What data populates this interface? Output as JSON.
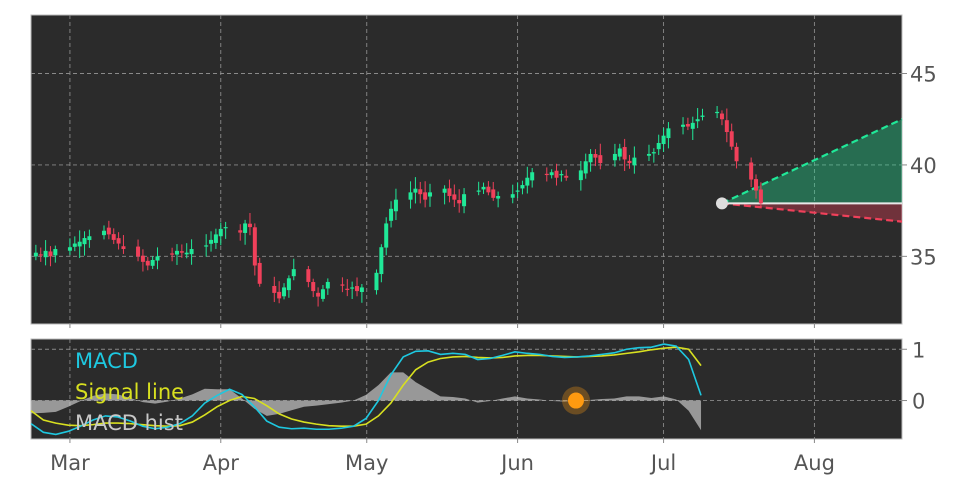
{
  "chart_data": [
    {
      "type": "candlestick",
      "x_axis": {
        "type": "date",
        "range": [
          "2021-02-21",
          "2021-08-19"
        ],
        "ticks": [
          {
            "date": "2021-03-01",
            "label": "Mar"
          },
          {
            "date": "2021-04-01",
            "label": "Apr"
          },
          {
            "date": "2021-05-01",
            "label": "May"
          },
          {
            "date": "2021-06-01",
            "label": "Jun"
          },
          {
            "date": "2021-07-01",
            "label": "Jul"
          },
          {
            "date": "2021-08-01",
            "label": "Aug"
          }
        ]
      },
      "y_axis": {
        "range": [
          31.3,
          48.2
        ],
        "position": "right",
        "ticks": [
          35,
          40,
          45
        ]
      },
      "grid": true,
      "colors": {
        "up": "#20e898",
        "down": "#f0405a",
        "background": "#2b2b2b"
      },
      "closes": [
        35.2,
        35.1,
        35.3,
        35.0,
        35.4,
        35.5,
        35.7,
        35.8,
        36.0,
        36.1,
        36.4,
        36.2,
        35.9,
        35.7,
        35.4,
        35.0,
        34.7,
        34.5,
        34.8,
        35.0,
        35.1,
        35.3,
        35.2,
        35.2,
        35.4,
        35.6,
        35.9,
        36.2,
        36.5,
        36.6,
        36.3,
        36.8,
        36.6,
        34.5,
        33.5,
        33.0,
        32.7,
        33.3,
        33.8,
        34.3,
        33.6,
        33.1,
        32.8,
        33.2,
        33.6,
        33.4,
        33.2,
        33.3,
        33.1,
        33.3,
        34.1,
        35.5,
        36.8,
        37.6,
        38.1,
        38.5,
        38.7,
        38.4,
        38.1,
        38.5,
        38.7,
        38.3,
        38.1,
        37.9,
        38.4,
        38.6,
        38.8,
        38.5,
        38.2,
        38.3,
        38.4,
        38.6,
        38.9,
        39.3,
        39.6,
        39.5,
        39.6,
        39.3,
        39.5,
        39.3,
        39.7,
        40.2,
        40.6,
        40.4,
        40.1,
        40.6,
        40.9,
        40.3,
        40.1,
        40.4,
        40.6,
        40.7,
        41.2,
        41.6,
        42.0,
        42.2,
        42.1,
        42.3,
        42.5,
        42.7,
        42.9,
        42.5,
        41.8,
        41.0,
        40.2,
        39.2,
        38.6,
        37.9
      ],
      "projection": {
        "start": {
          "date": "2021-07-13",
          "value": 37.9
        },
        "upper": {
          "date": "2021-08-19",
          "value": 42.5,
          "color": "#20e898"
        },
        "lower": {
          "date": "2021-08-19",
          "value": 36.9,
          "color": "#f0405a"
        },
        "baseline": 37.9,
        "marker_color": "#dddddd"
      }
    },
    {
      "type": "line",
      "x_axis": {
        "type": "date",
        "range": [
          "2021-02-21",
          "2021-08-19"
        ]
      },
      "y_axis": {
        "range": [
          -0.75,
          1.2
        ],
        "position": "right",
        "ticks": [
          0,
          1
        ]
      },
      "grid": true,
      "legend": {
        "placement": "top-left"
      },
      "series": [
        {
          "name": "MACD",
          "color": "#1ec8e0",
          "values": [
            -0.45,
            -0.62,
            -0.66,
            -0.6,
            -0.5,
            -0.38,
            -0.3,
            -0.32,
            -0.4,
            -0.5,
            -0.55,
            -0.52,
            -0.45,
            -0.3,
            -0.05,
            0.1,
            0.22,
            0.12,
            -0.12,
            -0.4,
            -0.52,
            -0.55,
            -0.54,
            -0.56,
            -0.56,
            -0.54,
            -0.5,
            -0.35,
            0.0,
            0.5,
            0.85,
            0.96,
            0.97,
            0.9,
            0.92,
            0.9,
            0.8,
            0.82,
            0.88,
            0.95,
            0.92,
            0.9,
            0.86,
            0.84,
            0.85,
            0.87,
            0.9,
            0.93,
            1.0,
            1.03,
            1.04,
            1.1,
            1.06,
            0.8,
            0.1
          ]
        },
        {
          "name": "Signal line",
          "color": "#d8e020",
          "values": [
            -0.2,
            -0.38,
            -0.44,
            -0.48,
            -0.49,
            -0.47,
            -0.44,
            -0.44,
            -0.45,
            -0.47,
            -0.49,
            -0.5,
            -0.49,
            -0.42,
            -0.28,
            -0.12,
            0.0,
            0.08,
            0.04,
            -0.1,
            -0.26,
            -0.36,
            -0.42,
            -0.46,
            -0.49,
            -0.5,
            -0.5,
            -0.46,
            -0.3,
            -0.05,
            0.3,
            0.6,
            0.75,
            0.82,
            0.85,
            0.86,
            0.84,
            0.83,
            0.84,
            0.87,
            0.88,
            0.88,
            0.87,
            0.86,
            0.85,
            0.86,
            0.87,
            0.89,
            0.92,
            0.95,
            0.99,
            1.02,
            1.04,
            1.0,
            0.68
          ]
        },
        {
          "name": "MACD hist",
          "color": "#c8c8c8",
          "type": "area",
          "values": [
            -0.25,
            -0.24,
            -0.22,
            -0.12,
            -0.01,
            0.09,
            0.14,
            0.12,
            0.05,
            -0.03,
            -0.06,
            -0.02,
            0.04,
            0.12,
            0.23,
            0.22,
            0.22,
            0.04,
            -0.16,
            -0.3,
            -0.26,
            -0.19,
            -0.12,
            -0.1,
            -0.07,
            -0.04,
            0.0,
            0.11,
            0.3,
            0.55,
            0.55,
            0.36,
            0.22,
            0.08,
            0.07,
            0.04,
            -0.04,
            -0.01,
            0.04,
            0.08,
            0.04,
            0.02,
            -0.01,
            -0.02,
            0.0,
            0.01,
            0.03,
            0.04,
            0.08,
            0.08,
            0.05,
            0.08,
            0.02,
            -0.2,
            -0.58
          ]
        }
      ],
      "marker": {
        "date": "2021-06-13",
        "value": 0.0,
        "color": "#ff9a10"
      }
    }
  ]
}
